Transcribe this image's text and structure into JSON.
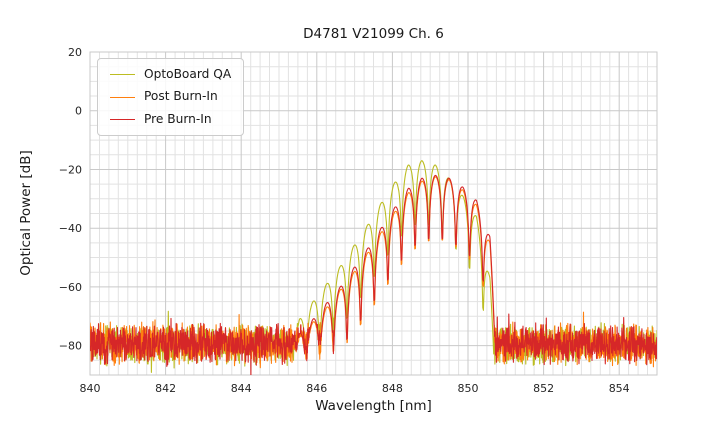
{
  "chart_data": {
    "type": "line",
    "title": "D4781 V21099 Ch. 6",
    "xlabel": "Wavelength [nm]",
    "ylabel": "Optical Power [dB]",
    "xlim": [
      840,
      855
    ],
    "ylim": [
      -90,
      20
    ],
    "x_ticks": [
      {
        "value": 840,
        "label": "840"
      },
      {
        "value": 842,
        "label": "842"
      },
      {
        "value": 844,
        "label": "844"
      },
      {
        "value": 846,
        "label": "846"
      },
      {
        "value": 848,
        "label": "848"
      },
      {
        "value": 850,
        "label": "850"
      },
      {
        "value": 852,
        "label": "852"
      },
      {
        "value": 854,
        "label": "854"
      }
    ],
    "y_ticks": [
      {
        "value": 20,
        "label": "20"
      },
      {
        "value": 0,
        "label": "0"
      },
      {
        "value": -20,
        "label": "−20"
      },
      {
        "value": -40,
        "label": "−40"
      },
      {
        "value": -60,
        "label": "−60"
      },
      {
        "value": -80,
        "label": "−80"
      }
    ],
    "x_minor_step": 0.25,
    "y_minor_step": 5,
    "grid": {
      "major_color": "#c9c9c9",
      "minor_color": "#e2e2e2",
      "background": "#ffffff"
    },
    "legend": {
      "location": "upper left"
    },
    "noise": {
      "sample_step_nm": 0.008
    },
    "series": [
      {
        "name": "OptoBoard QA",
        "color": "#bcbd22",
        "noise_floor_db": -79.5,
        "noise_amp_db": 7,
        "mode_spacing_nm": 0.36,
        "notch_depth_db": 21,
        "left_slope_db_per_nm": 55,
        "right_slope_db_per_nm": 220,
        "peak_wavelength_nm": 848.78,
        "peak_power_db": -17.0,
        "modes": [
          [
            845.54,
            -71.0
          ],
          [
            845.9,
            -65.0
          ],
          [
            846.26,
            -59.0
          ],
          [
            846.62,
            -53.0
          ],
          [
            846.98,
            -46.0
          ],
          [
            847.34,
            -39.0
          ],
          [
            847.7,
            -31.5
          ],
          [
            848.06,
            -24.5
          ],
          [
            848.42,
            -18.5
          ],
          [
            848.78,
            -17.0
          ],
          [
            849.14,
            -18.5
          ],
          [
            849.5,
            -23.0
          ],
          [
            849.86,
            -29.0
          ],
          [
            850.22,
            -36.0
          ],
          [
            850.58,
            -57.0
          ]
        ]
      },
      {
        "name": "Post Burn-In",
        "color": "#ff7f0e",
        "noise_floor_db": -79.3,
        "noise_amp_db": 7,
        "mode_spacing_nm": 0.36,
        "notch_depth_db": 21,
        "left_slope_db_per_nm": 55,
        "right_slope_db_per_nm": 220,
        "peak_wavelength_nm": 849.14,
        "peak_power_db": -22.5,
        "modes": [
          [
            845.54,
            -77.0
          ],
          [
            845.9,
            -72.0
          ],
          [
            846.26,
            -67.0
          ],
          [
            846.62,
            -61.0
          ],
          [
            846.98,
            -55.0
          ],
          [
            847.34,
            -48.5
          ],
          [
            847.7,
            -41.5
          ],
          [
            848.06,
            -34.5
          ],
          [
            848.42,
            -28.0
          ],
          [
            848.78,
            -24.0
          ],
          [
            849.14,
            -22.5
          ],
          [
            849.5,
            -23.5
          ],
          [
            849.86,
            -27.0
          ],
          [
            850.22,
            -32.0
          ],
          [
            850.58,
            -45.0
          ]
        ]
      },
      {
        "name": "Pre Burn-In",
        "color": "#d62728",
        "noise_floor_db": -79.6,
        "noise_amp_db": 7,
        "mode_spacing_nm": 0.36,
        "notch_depth_db": 21,
        "left_slope_db_per_nm": 55,
        "right_slope_db_per_nm": 220,
        "peak_wavelength_nm": 849.14,
        "peak_power_db": -22.0,
        "modes": [
          [
            845.54,
            -76.0
          ],
          [
            845.9,
            -71.0
          ],
          [
            846.26,
            -65.5
          ],
          [
            846.62,
            -60.0
          ],
          [
            846.98,
            -53.5
          ],
          [
            847.34,
            -47.0
          ],
          [
            847.7,
            -40.0
          ],
          [
            848.06,
            -33.0
          ],
          [
            848.42,
            -26.5
          ],
          [
            848.78,
            -23.0
          ],
          [
            849.14,
            -22.0
          ],
          [
            849.5,
            -23.0
          ],
          [
            849.86,
            -26.0
          ],
          [
            850.22,
            -30.5
          ],
          [
            850.58,
            -43.0
          ]
        ]
      }
    ]
  }
}
